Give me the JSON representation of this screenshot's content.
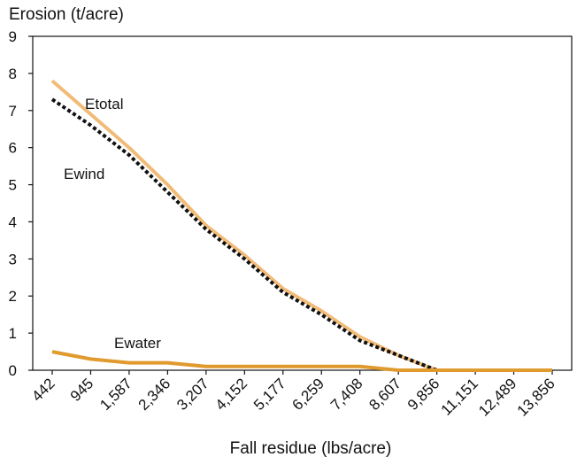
{
  "chart_data": {
    "type": "line",
    "title": "",
    "ylabel": "Erosion (t/acre)",
    "xlabel": "Fall residue (lbs/acre)",
    "categories": [
      "442",
      "945",
      "1,587",
      "2,346",
      "3,207",
      "4,152",
      "5,177",
      "6,259",
      "7,408",
      "8,607",
      "9,856",
      "11,151",
      "12,489",
      "13,856"
    ],
    "ylim": [
      0,
      9
    ],
    "yticks": [
      0,
      1,
      2,
      3,
      4,
      5,
      6,
      7,
      8,
      9
    ],
    "grid": false,
    "legend": "inline-labels",
    "series": [
      {
        "name": "Etotal",
        "style": "solid",
        "color": "#f1bb78",
        "values": [
          7.8,
          6.9,
          6.0,
          5.0,
          3.9,
          3.1,
          2.2,
          1.6,
          0.9,
          0.4,
          0.0,
          0.0,
          0.0,
          0.0
        ]
      },
      {
        "name": "Ewind",
        "style": "dotted",
        "color": "#111111",
        "values": [
          7.3,
          6.6,
          5.8,
          4.8,
          3.8,
          3.0,
          2.1,
          1.5,
          0.8,
          0.4,
          0.0,
          0.0,
          0.0,
          0.0
        ]
      },
      {
        "name": "Ewater",
        "style": "solid",
        "color": "#e09a2e",
        "values": [
          0.5,
          0.3,
          0.2,
          0.2,
          0.1,
          0.1,
          0.1,
          0.1,
          0.1,
          0.0,
          0.0,
          0.0,
          0.0,
          0.0
        ]
      }
    ]
  }
}
